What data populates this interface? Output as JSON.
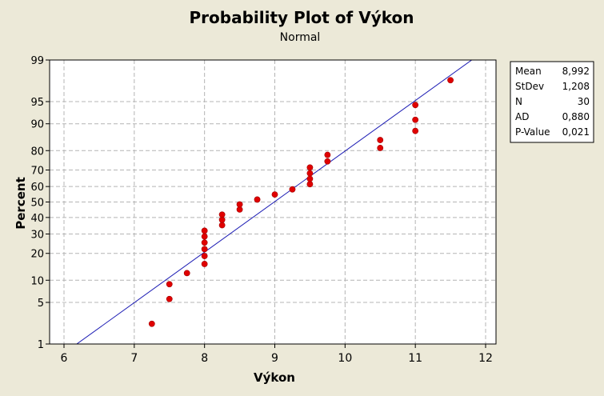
{
  "chart_data": {
    "type": "scatter",
    "title": "Probability Plot of Výkon",
    "subtitle": "Normal",
    "xlabel": "Výkon",
    "ylabel": "Percent",
    "xlim": [
      6,
      12
    ],
    "x_ticks": [
      6,
      7,
      8,
      9,
      10,
      11,
      12
    ],
    "y_scale": "normal-probability",
    "ylim": [
      1,
      99
    ],
    "y_ticks": [
      1,
      5,
      10,
      20,
      30,
      40,
      50,
      60,
      70,
      80,
      90,
      95,
      99
    ],
    "grid": true,
    "series": [
      {
        "points": [
          {
            "x": 7.25,
            "y": 2.3
          },
          {
            "x": 7.5,
            "y": 5.6
          },
          {
            "x": 7.5,
            "y": 8.9
          },
          {
            "x": 7.75,
            "y": 12.2
          },
          {
            "x": 8.0,
            "y": 15.5
          },
          {
            "x": 8.0,
            "y": 18.8
          },
          {
            "x": 8.0,
            "y": 22.0
          },
          {
            "x": 8.0,
            "y": 25.3
          },
          {
            "x": 8.0,
            "y": 28.6
          },
          {
            "x": 8.0,
            "y": 31.9
          },
          {
            "x": 8.25,
            "y": 35.2
          },
          {
            "x": 8.25,
            "y": 38.5
          },
          {
            "x": 8.25,
            "y": 41.8
          },
          {
            "x": 8.5,
            "y": 45.1
          },
          {
            "x": 8.5,
            "y": 48.4
          },
          {
            "x": 8.75,
            "y": 51.6
          },
          {
            "x": 9.0,
            "y": 54.9
          },
          {
            "x": 9.25,
            "y": 58.2
          },
          {
            "x": 9.5,
            "y": 61.5
          },
          {
            "x": 9.5,
            "y": 64.8
          },
          {
            "x": 9.5,
            "y": 68.1
          },
          {
            "x": 9.5,
            "y": 71.4
          },
          {
            "x": 9.75,
            "y": 74.7
          },
          {
            "x": 9.75,
            "y": 78.0
          },
          {
            "x": 10.5,
            "y": 81.2
          },
          {
            "x": 10.5,
            "y": 84.5
          },
          {
            "x": 11.0,
            "y": 87.8
          },
          {
            "x": 11.0,
            "y": 91.1
          },
          {
            "x": 11.0,
            "y": 94.4
          },
          {
            "x": 11.5,
            "y": 97.7
          }
        ]
      }
    ],
    "fit_line": {
      "mean": 8.992,
      "stdev": 1.208
    },
    "stats_legend": {
      "placement": "right",
      "rows": [
        {
          "label": "Mean",
          "value": "8,992"
        },
        {
          "label": "StDev",
          "value": "1,208"
        },
        {
          "label": "N",
          "value": "30"
        },
        {
          "label": "AD",
          "value": "0,880"
        },
        {
          "label": "P-Value",
          "value": "0,021"
        }
      ]
    },
    "colors": {
      "background": "#ece9d8",
      "plot_area": "#ffffff",
      "points": "#e00000",
      "fit_line": "#1c1cb4",
      "grid": "#b4b4b4"
    }
  }
}
